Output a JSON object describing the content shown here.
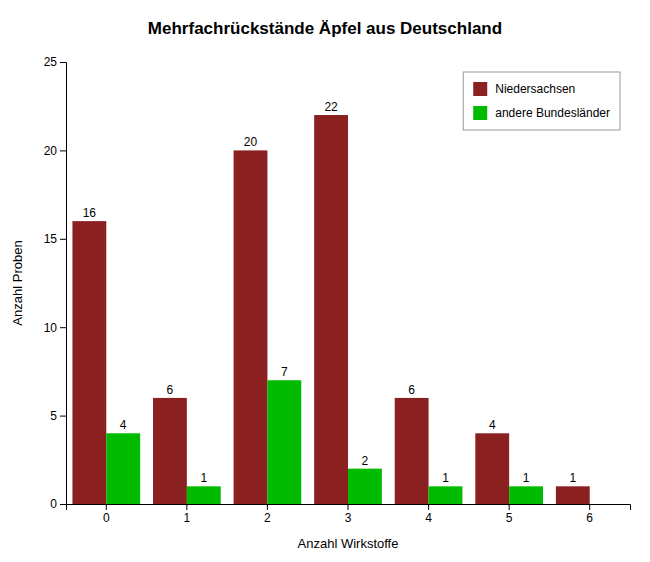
{
  "chart_data": {
    "type": "bar",
    "title": "Mehrfachrückstände Äpfel aus Deutschland",
    "x_label": "Anzahl  Wirkstoffe",
    "y_label": "Anzahl  Proben",
    "categories": [
      "0",
      "1",
      "2",
      "3",
      "4",
      "5",
      "6"
    ],
    "series": [
      {
        "name": "Niedersachsen",
        "color": "#8B2020",
        "values": [
          16,
          6,
          20,
          22,
          6,
          4,
          1
        ]
      },
      {
        "name": "andere Bundesländer",
        "color": "#00BB00",
        "values": [
          4,
          1,
          7,
          2,
          1,
          1,
          0
        ],
        "value_labels": [
          "4",
          "1",
          "7",
          "2",
          "1",
          "1",
          null
        ]
      }
    ],
    "ylim": [
      0,
      25
    ],
    "yticks": [
      0,
      5,
      10,
      15,
      20,
      25
    ],
    "grid": false,
    "legend": "upper-right",
    "data_labels": true
  }
}
